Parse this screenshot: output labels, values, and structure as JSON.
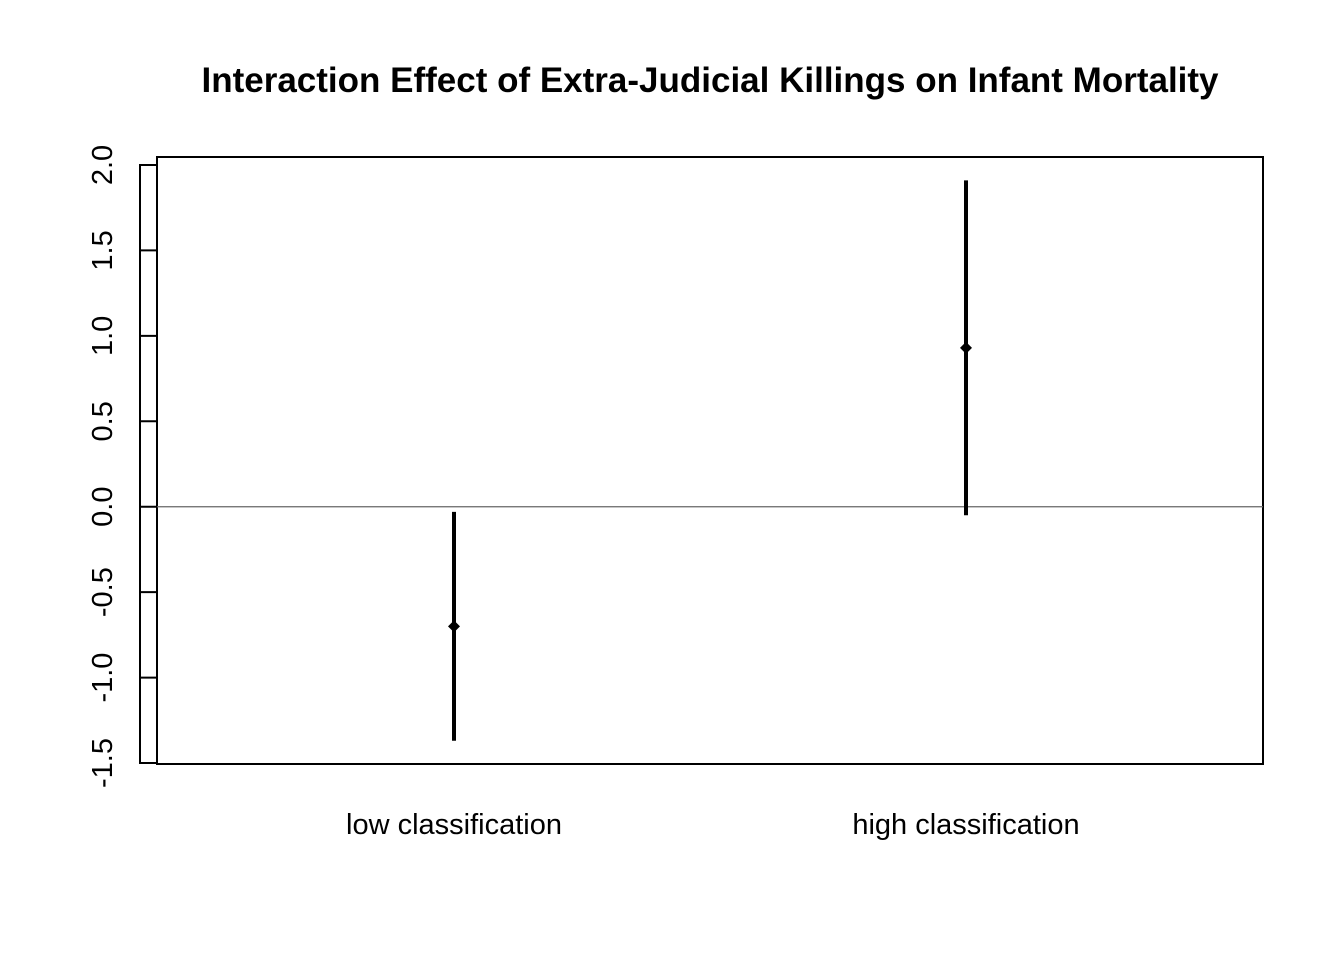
{
  "chart_data": {
    "type": "scatter",
    "title": "Interaction Effect of Extra-Judicial Killings on Infant Mortality",
    "xlabel": "",
    "ylabel": "",
    "categories": [
      "low classification",
      "high classification"
    ],
    "series": [
      {
        "estimates": [
          -0.7,
          0.93
        ],
        "lower": [
          -1.37,
          -0.05
        ],
        "upper": [
          -0.03,
          1.91
        ]
      }
    ],
    "ylim": [
      -1.5,
      2.0
    ],
    "yticks": [
      -1.5,
      -1.0,
      -0.5,
      0.0,
      0.5,
      1.0,
      1.5,
      2.0
    ],
    "ytick_labels": [
      "-1.5",
      "-1.0",
      "-0.5",
      "0.0",
      "0.5",
      "1.0",
      "1.5",
      "2.0"
    ],
    "reference_line": 0,
    "grid": false,
    "colors": {
      "marks": "#000000",
      "reference_line": "#666666",
      "frame": "#000000"
    }
  }
}
